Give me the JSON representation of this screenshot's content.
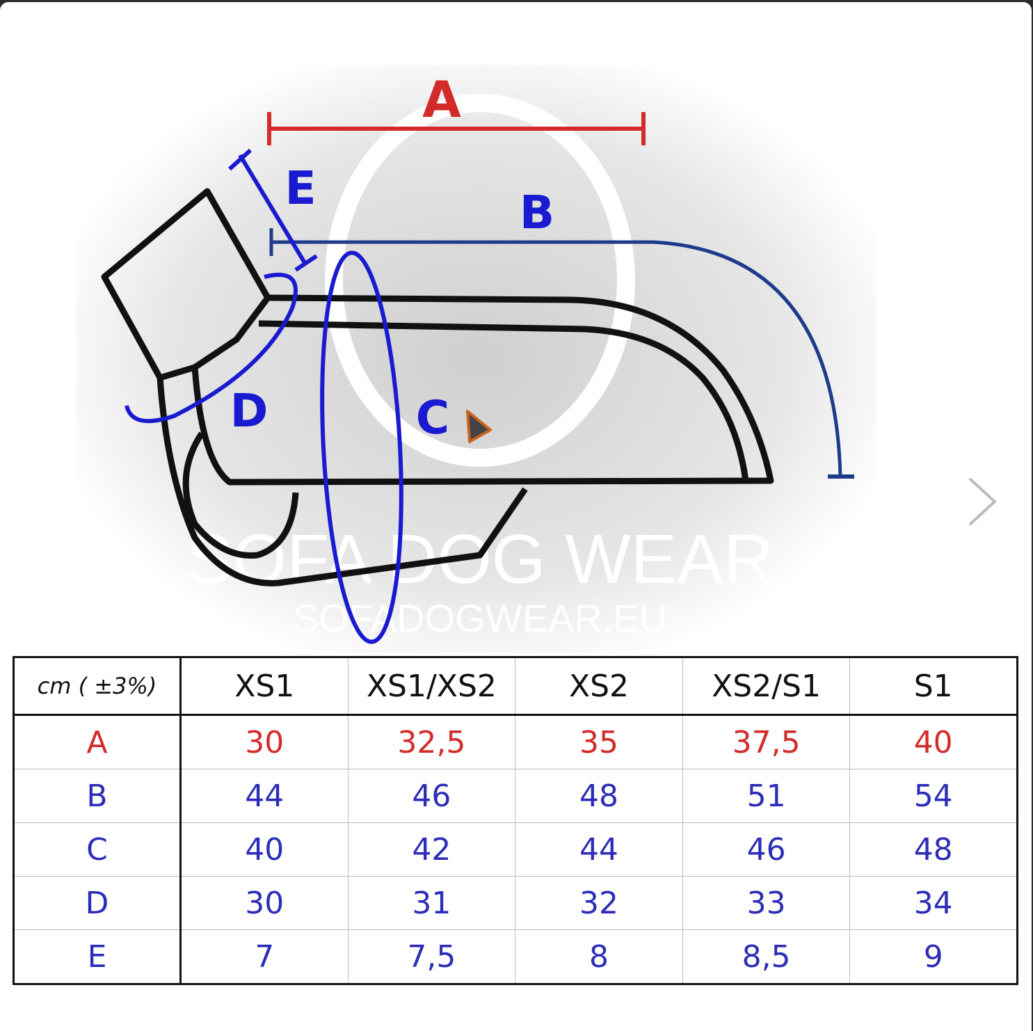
{
  "diagram": {
    "labels": {
      "A": "A",
      "B": "B",
      "C": "C",
      "D": "D",
      "E": "E"
    },
    "watermark_title": "SOFA DOG WEAR",
    "watermark_url": "SOFADOGWEAR.EU",
    "colors": {
      "A": "#d42a2a",
      "B": "#1e3a8a",
      "CDE": "#1a1ad0",
      "outline": "#111111"
    }
  },
  "viewer": {
    "next_icon": "chevron-right-icon",
    "cursor_icon": "mouse-pointer-icon"
  },
  "size_table": {
    "unit_header": "cm ( ±3%)",
    "columns": [
      "XS1",
      "XS1/XS2",
      "XS2",
      "XS2/S1",
      "S1"
    ],
    "rows": [
      {
        "label": "A",
        "values": [
          "30",
          "32,5",
          "35",
          "37,5",
          "40"
        ],
        "color": "#d42a2a"
      },
      {
        "label": "B",
        "values": [
          "44",
          "46",
          "48",
          "51",
          "54"
        ],
        "color": "#2c2cb8"
      },
      {
        "label": "C",
        "values": [
          "40",
          "42",
          "44",
          "46",
          "48"
        ],
        "color": "#2c2cb8"
      },
      {
        "label": "D",
        "values": [
          "30",
          "31",
          "32",
          "33",
          "34"
        ],
        "color": "#2c2cb8"
      },
      {
        "label": "E",
        "values": [
          "7",
          "7,5",
          "8",
          "8,5",
          "9"
        ],
        "color": "#2c2cb8"
      }
    ]
  }
}
